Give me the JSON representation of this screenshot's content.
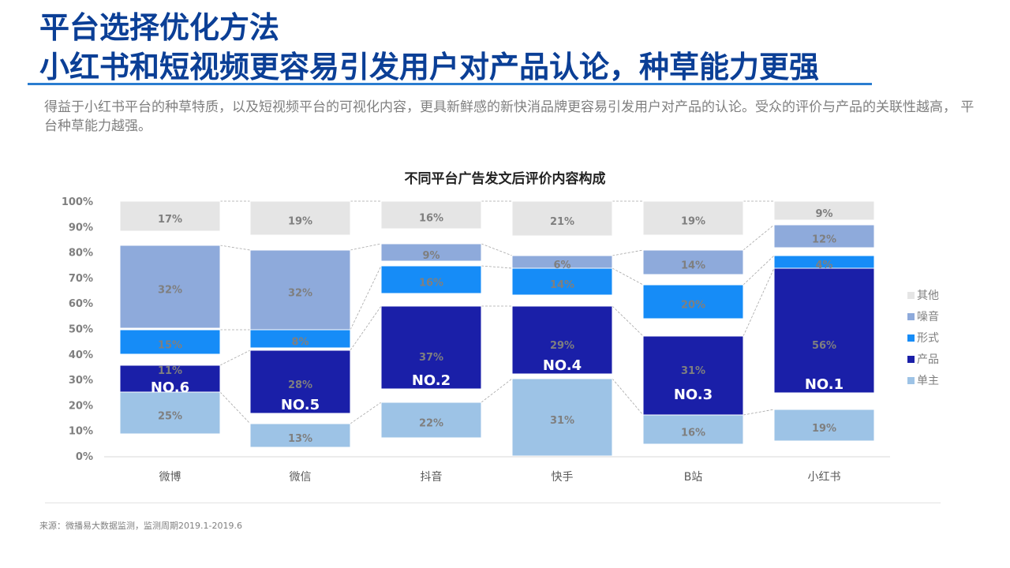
{
  "header": {
    "title_line1": "平台选择优化方法",
    "title_line2": "小红书和短视频更容易引发用户对产品认论，种草能力更强",
    "description": "得益于小红书平台的种草特质，以及短视频平台的可视化内容，更具新鲜感的新快消品牌更容易引发用户对产品的认论。受众的评价与产品的关联性越高， 平台种草能力越强。"
  },
  "colors": {
    "title": "#0b3f96",
    "rule": "#2a7dd0",
    "其他": "#e5e5e5",
    "噪音": "#8eaadb",
    "形式": "#168cf7",
    "产品": "#1a1fa8",
    "单主": "#9dc3e6"
  },
  "chart_data": {
    "type": "bar",
    "stacked": true,
    "title": "不同平台广告发文后评价内容构成",
    "categories": [
      "微博",
      "微信",
      "抖音",
      "快手",
      "B站",
      "小红书"
    ],
    "y_ticks": [
      "0%",
      "10%",
      "20%",
      "30%",
      "40%",
      "50%",
      "60%",
      "70%",
      "80%",
      "90%",
      "100%"
    ],
    "ylim": [
      0,
      100
    ],
    "legend_position": "right",
    "series": [
      {
        "name": "单主",
        "values": [
          25,
          13,
          22,
          31,
          16,
          19
        ],
        "labels": [
          "25%",
          "13%",
          "22%",
          "31%",
          "16%",
          "19%"
        ]
      },
      {
        "name": "产品",
        "values": [
          11,
          28,
          37,
          29,
          31,
          56
        ],
        "labels": [
          "11%",
          "28%",
          "37%",
          "29%",
          "31%",
          "56%"
        ]
      },
      {
        "name": "形式",
        "values": [
          15,
          8,
          16,
          14,
          20,
          4
        ],
        "labels": [
          "15%",
          "8%",
          "16%",
          "14%",
          "20%",
          "4%"
        ]
      },
      {
        "name": "噪音",
        "values": [
          32,
          32,
          9,
          6,
          14,
          12
        ],
        "labels": [
          "32%",
          "32%",
          "9%",
          "6%",
          "14%",
          "12%"
        ]
      },
      {
        "name": "其他",
        "values": [
          17,
          19,
          16,
          21,
          19,
          9
        ],
        "labels": [
          "17%",
          "19%",
          "16%",
          "21%",
          "19%",
          "9%"
        ]
      }
    ],
    "legend_order": [
      "其他",
      "噪音",
      "形式",
      "产品",
      "单主"
    ],
    "rank_labels": [
      "NO.6",
      "NO.5",
      "NO.2",
      "NO.4",
      "NO.3",
      "NO.1"
    ]
  },
  "footer": {
    "source": "来源：微播易大数据监测，监测周期2019.1-2019.6"
  }
}
